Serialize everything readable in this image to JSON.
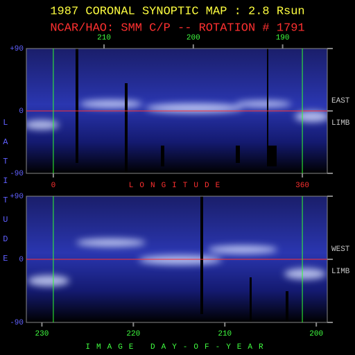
{
  "chart_data": [
    {
      "type": "image",
      "title": "1987 CORONAL SYNOPTIC MAP : 2.8 Rsun",
      "subtitle": "NCAR/HAO: SMM C/P -- ROTATION # 1791",
      "ylabel": "LATITUDE",
      "ylim": [
        -90,
        90
      ],
      "yticks": [
        {
          "value": 90,
          "label": "+90"
        },
        0,
        {
          "value": -90,
          "label": "-90"
        }
      ],
      "xlim": [
        -39,
        396
      ],
      "xticks": [
        0,
        360
      ],
      "xlabel": "LONGITUDE",
      "x2lim": [
        218.7,
        185
      ],
      "x2ticks": [
        210,
        200,
        190
      ],
      "side_labels": [
        "EAST",
        "LIMB"
      ]
    },
    {
      "type": "image",
      "ylim": [
        -90,
        90
      ],
      "yticks": [
        {
          "value": 90,
          "label": "+90"
        },
        0,
        {
          "value": -90,
          "label": "-90"
        }
      ],
      "xlim": [
        231.7,
        198.8
      ],
      "xticks": [
        230,
        220,
        210,
        200
      ],
      "xlabel": "IMAGE DAY-OF-YEAR",
      "side_labels": [
        "WEST",
        "LIMB"
      ]
    }
  ]
}
